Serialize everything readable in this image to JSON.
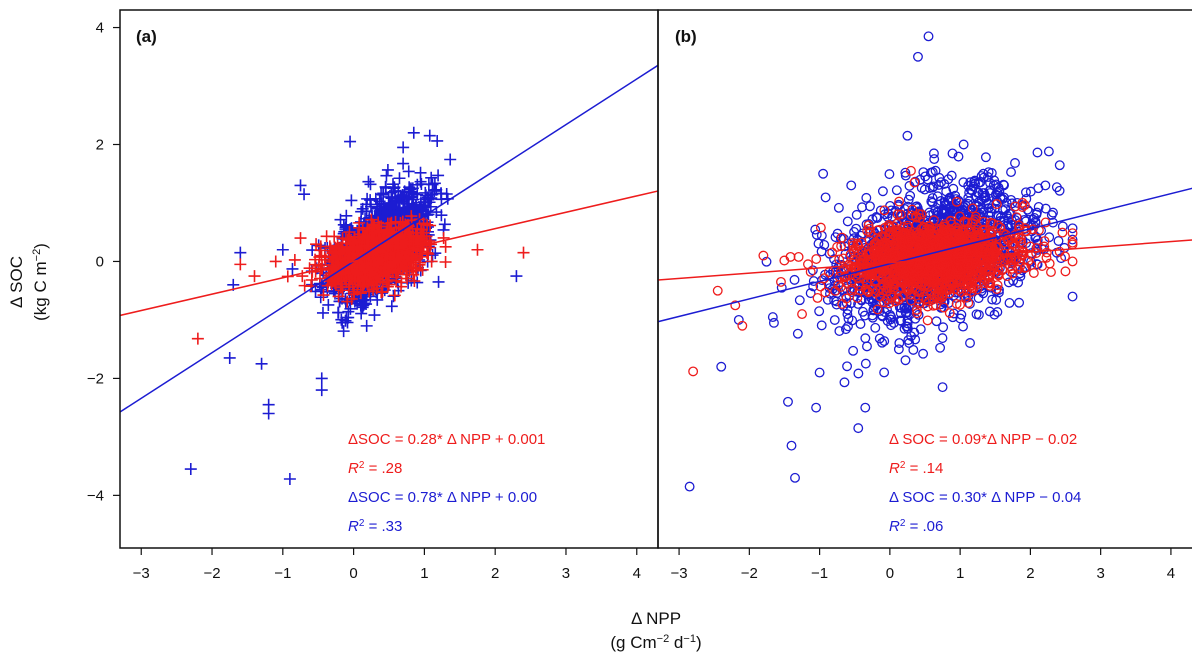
{
  "figure": {
    "xlabel_line1": "Δ NPP",
    "xlabel_line2_pre": "(g Cm",
    "xlabel_line2_sup1": "−2",
    "xlabel_line2_mid": " d",
    "xlabel_line2_sup2": "−1",
    "xlabel_line2_post": ")",
    "ylabel_line1": "Δ SOC",
    "ylabel_line2_pre": "(kg C m",
    "ylabel_line2_sup": "−2",
    "ylabel_line2_post": ")",
    "colors": {
      "red": "#ee1c1c",
      "blue": "#1c1cd2"
    }
  },
  "chart_data": [
    {
      "type": "scatter",
      "panel": "(a)",
      "marker": "plus",
      "xlim": [
        -3.3,
        4.3
      ],
      "ylim": [
        -4.9,
        4.3
      ],
      "xticks": [
        -3,
        -2,
        -1,
        0,
        1,
        2,
        3,
        4
      ],
      "yticks": [
        -4,
        -2,
        0,
        2,
        4
      ],
      "series": [
        {
          "color": "#1c1cd2",
          "regression": {
            "slope": 0.78,
            "intercept": 0.0
          },
          "equation": "ΔSOC = 0.78* Δ NPP + 0.00",
          "r2_label": "R",
          "r2_value": " = .33",
          "cloud": {
            "x_mean": 0.35,
            "x_sd": 0.35,
            "y_sd": 0.38,
            "n": 1300
          },
          "outliers": [
            [
              -2.3,
              -3.55
            ],
            [
              -0.9,
              -3.72
            ],
            [
              -1.2,
              -2.45
            ],
            [
              -1.2,
              -2.6
            ],
            [
              -0.45,
              -2.2
            ],
            [
              -0.45,
              -2.0
            ],
            [
              2.3,
              -0.25
            ],
            [
              -1.75,
              -1.65
            ],
            [
              -1.3,
              -1.75
            ],
            [
              -1.6,
              0.15
            ],
            [
              -1.7,
              -0.4
            ],
            [
              -0.05,
              2.05
            ],
            [
              0.85,
              2.2
            ],
            [
              0.7,
              1.95
            ],
            [
              -0.75,
              1.3
            ],
            [
              -0.7,
              1.15
            ],
            [
              -1.0,
              0.2
            ],
            [
              1.2,
              -0.35
            ]
          ]
        },
        {
          "color": "#ee1c1c",
          "regression": {
            "slope": 0.28,
            "intercept": 0.001
          },
          "equation": "ΔSOC = 0.28* Δ NPP + 0.001",
          "r2_label": "R",
          "r2_value": " = .28",
          "cloud": {
            "x_mean": 0.3,
            "x_sd": 0.32,
            "y_sd": 0.22,
            "n": 1300
          },
          "outliers": [
            [
              -2.2,
              -1.32
            ],
            [
              -1.6,
              -0.05
            ],
            [
              -1.4,
              -0.25
            ],
            [
              -1.1,
              0.0
            ],
            [
              -0.75,
              0.4
            ],
            [
              1.75,
              0.2
            ],
            [
              2.4,
              0.15
            ],
            [
              1.3,
              0.25
            ]
          ]
        }
      ]
    },
    {
      "type": "scatter",
      "panel": "(b)",
      "marker": "circle",
      "xlim": [
        -3.3,
        4.3
      ],
      "ylim": [
        -4.9,
        4.3
      ],
      "xticks": [
        -3,
        -2,
        -1,
        0,
        1,
        2,
        3,
        4
      ],
      "yticks": [],
      "series": [
        {
          "color": "#1c1cd2",
          "regression": {
            "slope": 0.3,
            "intercept": -0.04
          },
          "equation": "Δ SOC = 0.30* Δ NPP − 0.04",
          "r2_label": "R",
          "r2_value": " = .06",
          "cloud": {
            "x_mean": 0.6,
            "x_sd": 0.7,
            "y_sd": 0.55,
            "n": 1600
          },
          "outliers": [
            [
              0.55,
              3.85
            ],
            [
              0.4,
              3.5
            ],
            [
              0.25,
              2.15
            ],
            [
              -2.85,
              -3.85
            ],
            [
              -1.35,
              -3.7
            ],
            [
              -1.4,
              -3.15
            ],
            [
              -0.45,
              -2.85
            ],
            [
              -2.4,
              -1.8
            ],
            [
              -1.45,
              -2.4
            ],
            [
              -1.05,
              -2.5
            ],
            [
              -0.35,
              -2.5
            ],
            [
              0.75,
              -2.15
            ],
            [
              -2.15,
              -1.0
            ],
            [
              -1.65,
              -1.05
            ],
            [
              -0.95,
              1.5
            ],
            [
              -0.55,
              1.3
            ],
            [
              1.05,
              2.0
            ],
            [
              2.6,
              -0.6
            ],
            [
              2.4,
              0.35
            ],
            [
              -1.0,
              -1.9
            ]
          ]
        },
        {
          "color": "#ee1c1c",
          "regression": {
            "slope": 0.09,
            "intercept": -0.02
          },
          "equation": "Δ SOC = 0.09*Δ NPP − 0.02",
          "r2_label": "R",
          "r2_value": " = .14",
          "cloud": {
            "x_mean": 0.6,
            "x_sd": 0.6,
            "y_sd": 0.3,
            "n": 1500
          },
          "outliers": [
            [
              -2.8,
              -1.88
            ],
            [
              -2.2,
              -0.75
            ],
            [
              -2.1,
              -1.1
            ],
            [
              -1.8,
              0.1
            ],
            [
              -1.55,
              -0.35
            ],
            [
              0.3,
              1.55
            ],
            [
              0.35,
              1.35
            ],
            [
              2.6,
              0.0
            ],
            [
              -2.45,
              -0.5
            ],
            [
              -1.25,
              -0.9
            ]
          ]
        }
      ]
    }
  ]
}
